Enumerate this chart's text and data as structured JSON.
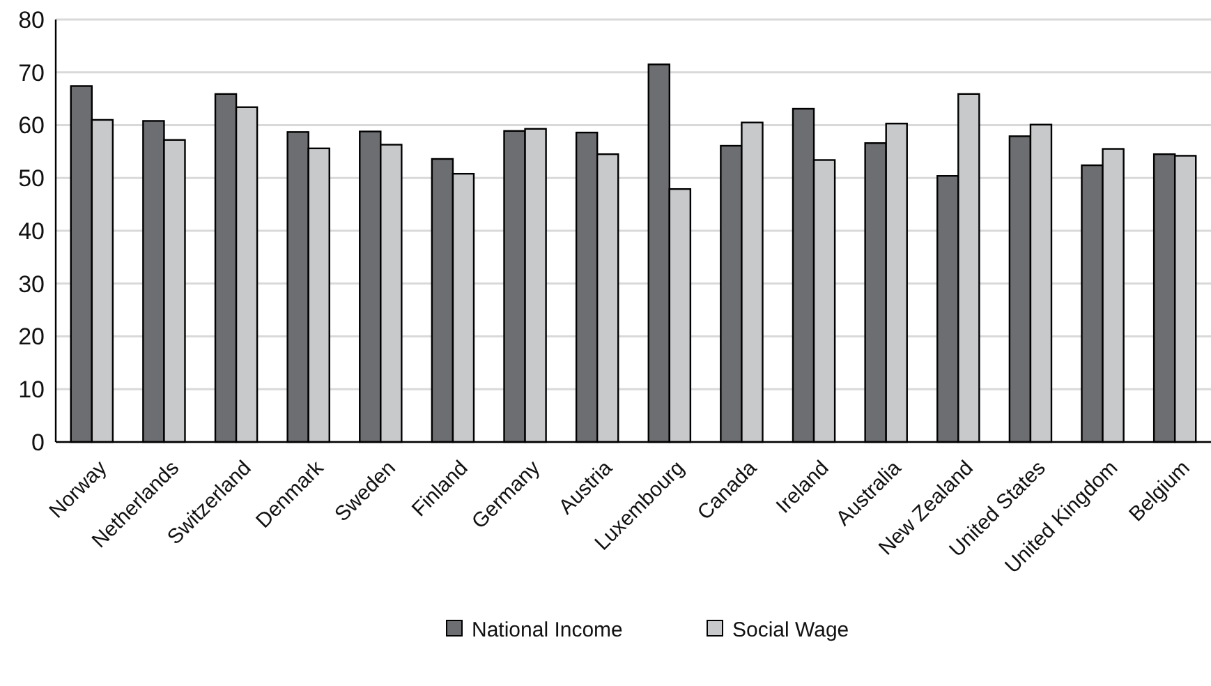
{
  "chart_data": {
    "type": "bar",
    "categories": [
      "Norway",
      "Netherlands",
      "Switzerland",
      "Denmark",
      "Sweden",
      "Finland",
      "Germany",
      "Austria",
      "Luxembourg",
      "Canada",
      "Ireland",
      "Australia",
      "New Zealand",
      "United States",
      "United Kingdom",
      "Belgium"
    ],
    "series": [
      {
        "name": "National Income",
        "color": "#6d6e71",
        "values": [
          67.4,
          60.8,
          65.9,
          58.7,
          58.8,
          53.6,
          58.9,
          58.6,
          71.5,
          56.1,
          63.1,
          56.6,
          50.4,
          57.9,
          52.4,
          54.5
        ]
      },
      {
        "name": "Social Wage",
        "color": "#c8c9cb",
        "values": [
          61.0,
          57.2,
          63.4,
          55.6,
          56.3,
          50.8,
          59.3,
          54.5,
          47.9,
          60.5,
          53.4,
          60.3,
          65.9,
          60.1,
          55.5,
          54.2
        ]
      }
    ],
    "ylim": [
      0,
      80
    ],
    "yticks": [
      0,
      10,
      20,
      30,
      40,
      50,
      60,
      70,
      80
    ],
    "grid": "y",
    "legend": "bottom"
  }
}
